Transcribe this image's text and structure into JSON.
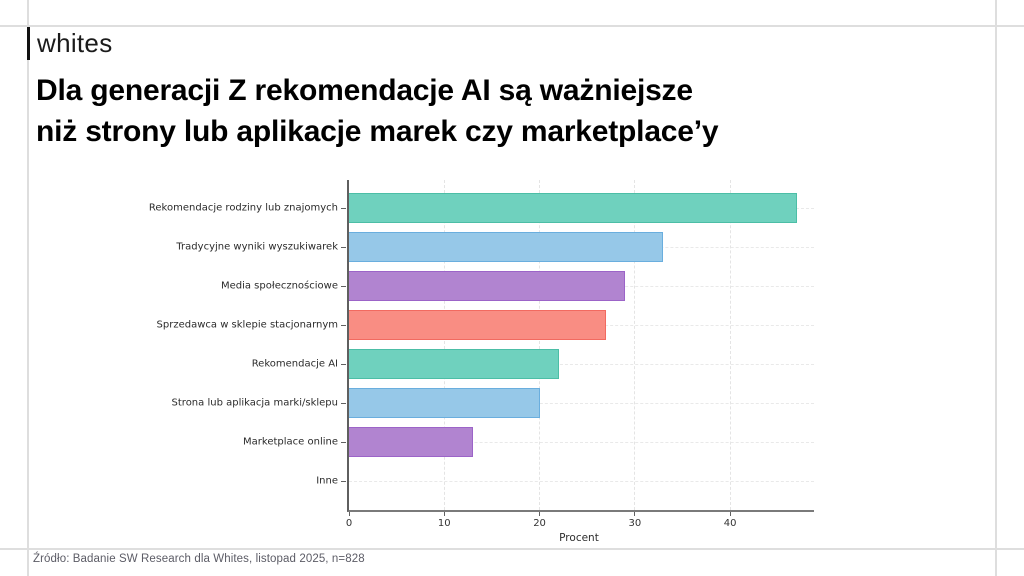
{
  "brand": {
    "logo": "whites"
  },
  "header": {
    "title_line1": "Dla generacji Z rekomendacje AI są ważniejsze",
    "title_line2": "niż strony lub aplikacje marek czy marketplace’y"
  },
  "footer": {
    "source": "Źródło: Badanie SW Research dla Whites, listopad 2025, n=828"
  },
  "chart_data": {
    "type": "bar",
    "orientation": "horizontal",
    "title": "",
    "xlabel": "Procent",
    "ylabel": "",
    "categories": [
      "Rekomendacje rodziny lub znajomych",
      "Tradycyjne wyniki wyszukiwarek",
      "Media społecznościowe",
      "Sprzedawca w sklepie stacjonarnym",
      "Rekomendacje AI",
      "Strona lub aplikacja marki/sklepu",
      "Marketplace online",
      "Inne"
    ],
    "values": [
      47,
      33,
      29,
      27,
      22,
      20,
      13,
      0
    ],
    "x_ticks": [
      0,
      10,
      20,
      30,
      40
    ],
    "xlim": [
      0,
      48.8
    ],
    "grid": true,
    "legend": false,
    "bar_colors": [
      "#6fd1be",
      "#96c8e8",
      "#b184d0",
      "#f98d83",
      "#6fd1be",
      "#96c8e8",
      "#b184d0",
      "#f98d83"
    ],
    "bar_edge_colors": [
      "#4cbea6",
      "#6aaede",
      "#9c64c8",
      "#f26a60",
      "#4cbea6",
      "#6aaede",
      "#9c64c8",
      "#f26a60"
    ]
  }
}
